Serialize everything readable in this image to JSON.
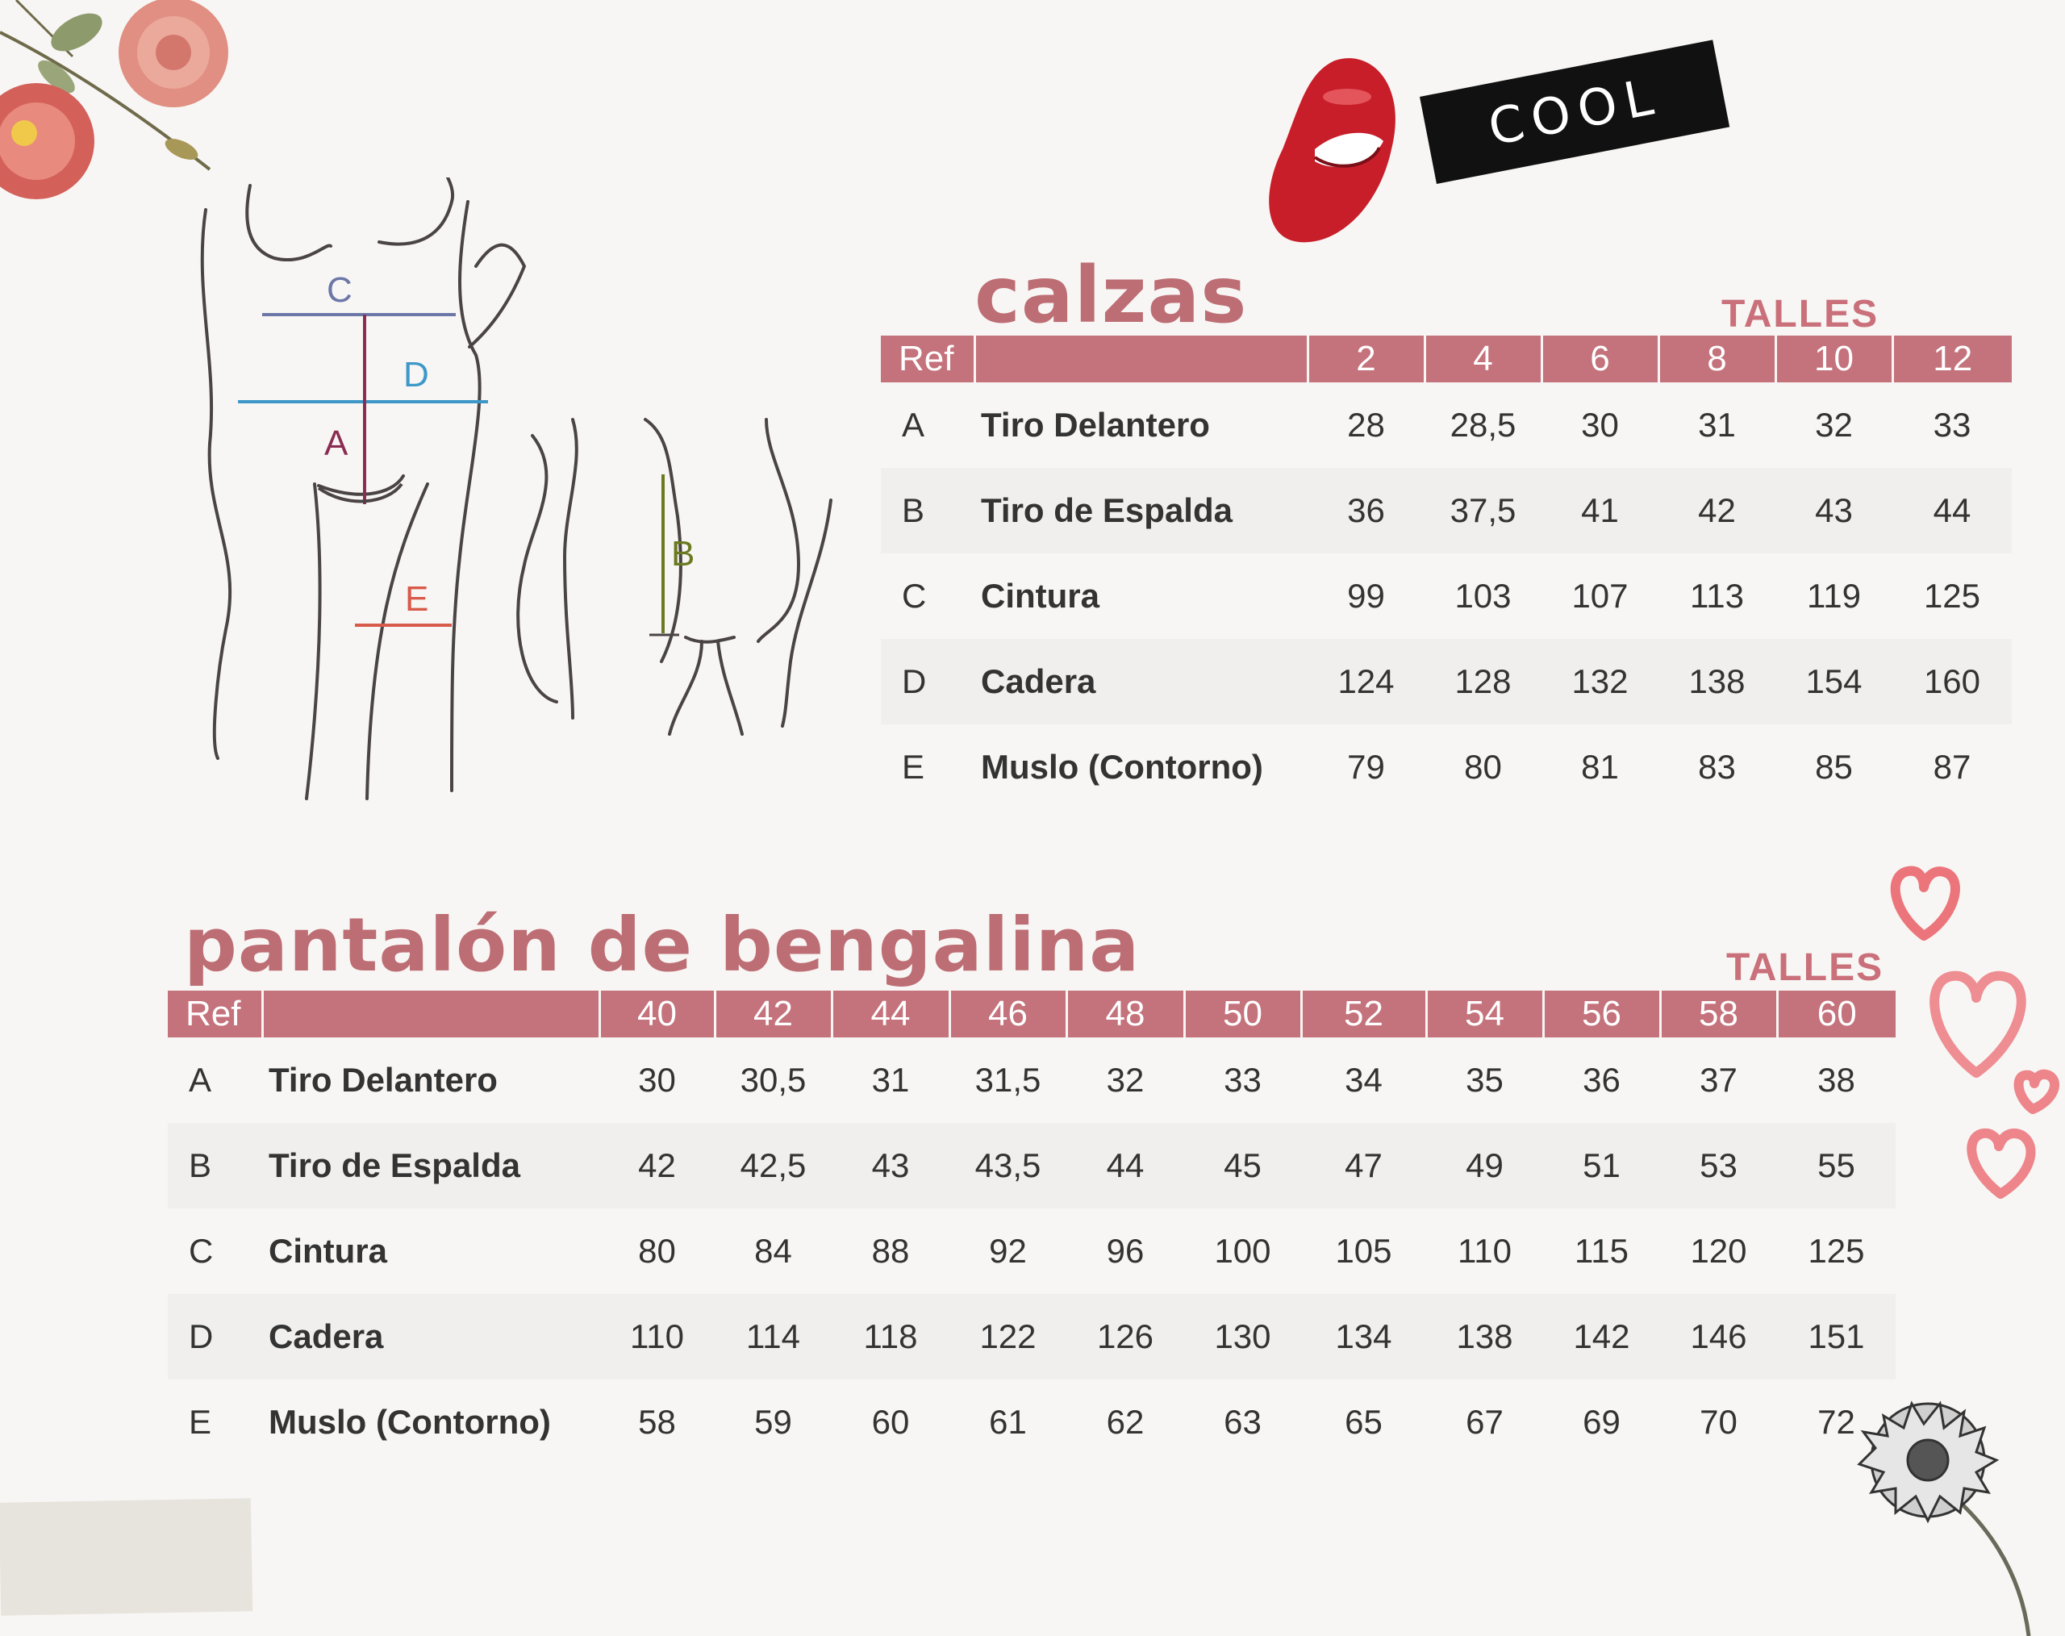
{
  "colors": {
    "title": "#bd6e74",
    "header_bg": "#c4727b",
    "measure_A": "#8b2c52",
    "measure_B": "#6b7a21",
    "measure_C": "#7381ad",
    "measure_D": "#3d98c9",
    "measure_E": "#e9984f"
  },
  "sticker": {
    "label": "COOL"
  },
  "diagram": {
    "letters": [
      "C",
      "D",
      "A",
      "E",
      "B"
    ]
  },
  "calzas": {
    "title": "calzas",
    "talles_label": "TALLES",
    "ref_header": "Ref",
    "sizes": [
      "2",
      "4",
      "6",
      "8",
      "10",
      "12"
    ],
    "rows": [
      {
        "ref": "A",
        "name": "Tiro Delantero",
        "values": [
          "28",
          "28,5",
          "30",
          "31",
          "32",
          "33"
        ]
      },
      {
        "ref": "B",
        "name": "Tiro de Espalda",
        "values": [
          "36",
          "37,5",
          "41",
          "42",
          "43",
          "44"
        ]
      },
      {
        "ref": "C",
        "name": "Cintura",
        "values": [
          "99",
          "103",
          "107",
          "113",
          "119",
          "125"
        ]
      },
      {
        "ref": "D",
        "name": "Cadera",
        "values": [
          "124",
          "128",
          "132",
          "138",
          "154",
          "160"
        ]
      },
      {
        "ref": "E",
        "name": "Muslo (Contorno)",
        "values": [
          "79",
          "80",
          "81",
          "83",
          "85",
          "87"
        ]
      }
    ]
  },
  "bengalina": {
    "title": "pantalón de bengalina",
    "talles_label": "TALLES",
    "ref_header": "Ref",
    "sizes": [
      "40",
      "42",
      "44",
      "46",
      "48",
      "50",
      "52",
      "54",
      "56",
      "58",
      "60"
    ],
    "rows": [
      {
        "ref": "A",
        "name": "Tiro Delantero",
        "values": [
          "30",
          "30,5",
          "31",
          "31,5",
          "32",
          "33",
          "34",
          "35",
          "36",
          "37",
          "38"
        ]
      },
      {
        "ref": "B",
        "name": "Tiro de Espalda",
        "values": [
          "42",
          "42,5",
          "43",
          "43,5",
          "44",
          "45",
          "47",
          "49",
          "51",
          "53",
          "55"
        ]
      },
      {
        "ref": "C",
        "name": "Cintura",
        "values": [
          "80",
          "84",
          "88",
          "92",
          "96",
          "100",
          "105",
          "110",
          "115",
          "120",
          "125"
        ]
      },
      {
        "ref": "D",
        "name": "Cadera",
        "values": [
          "110",
          "114",
          "118",
          "122",
          "126",
          "130",
          "134",
          "138",
          "142",
          "146",
          "151"
        ]
      },
      {
        "ref": "E",
        "name": "Muslo (Contorno)",
        "values": [
          "58",
          "59",
          "60",
          "61",
          "62",
          "63",
          "65",
          "67",
          "69",
          "70",
          "72"
        ]
      }
    ]
  }
}
